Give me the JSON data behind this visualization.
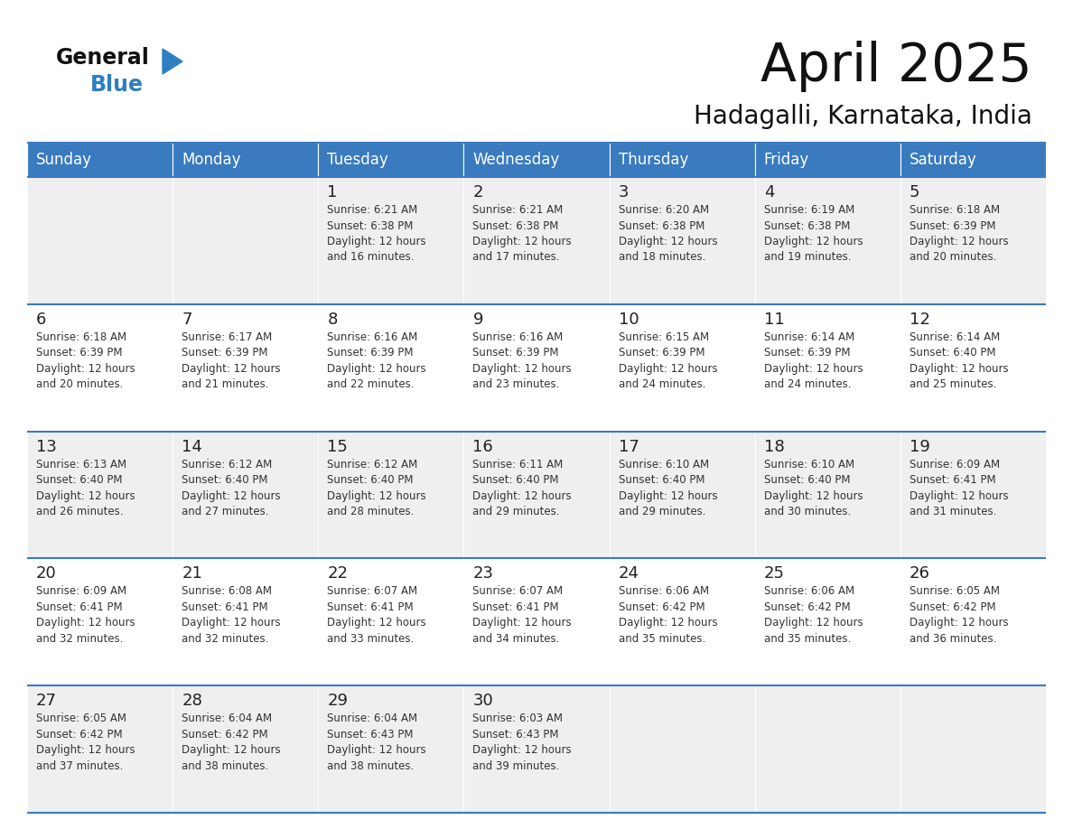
{
  "title": "April 2025",
  "subtitle": "Hadagalli, Karnataka, India",
  "header_bg_color": "#3a7abf",
  "header_text_color": "#ffffff",
  "day_names": [
    "Sunday",
    "Monday",
    "Tuesday",
    "Wednesday",
    "Thursday",
    "Friday",
    "Saturday"
  ],
  "row0_bg": "#efefef",
  "row1_bg": "#ffffff",
  "row2_bg": "#efefef",
  "row3_bg": "#ffffff",
  "row4_bg": "#efefef",
  "cell_text_color": "#333333",
  "day_number_color": "#222222",
  "border_color": "#3a7abf",
  "logo_general_color": "#111111",
  "logo_blue_color": "#2e7fc1",
  "title_color": "#111111",
  "subtitle_color": "#111111",
  "calendar_data": [
    [
      {
        "day": null,
        "info": null
      },
      {
        "day": null,
        "info": null
      },
      {
        "day": "1",
        "info": "Sunrise: 6:21 AM\nSunset: 6:38 PM\nDaylight: 12 hours\nand 16 minutes."
      },
      {
        "day": "2",
        "info": "Sunrise: 6:21 AM\nSunset: 6:38 PM\nDaylight: 12 hours\nand 17 minutes."
      },
      {
        "day": "3",
        "info": "Sunrise: 6:20 AM\nSunset: 6:38 PM\nDaylight: 12 hours\nand 18 minutes."
      },
      {
        "day": "4",
        "info": "Sunrise: 6:19 AM\nSunset: 6:38 PM\nDaylight: 12 hours\nand 19 minutes."
      },
      {
        "day": "5",
        "info": "Sunrise: 6:18 AM\nSunset: 6:39 PM\nDaylight: 12 hours\nand 20 minutes."
      }
    ],
    [
      {
        "day": "6",
        "info": "Sunrise: 6:18 AM\nSunset: 6:39 PM\nDaylight: 12 hours\nand 20 minutes."
      },
      {
        "day": "7",
        "info": "Sunrise: 6:17 AM\nSunset: 6:39 PM\nDaylight: 12 hours\nand 21 minutes."
      },
      {
        "day": "8",
        "info": "Sunrise: 6:16 AM\nSunset: 6:39 PM\nDaylight: 12 hours\nand 22 minutes."
      },
      {
        "day": "9",
        "info": "Sunrise: 6:16 AM\nSunset: 6:39 PM\nDaylight: 12 hours\nand 23 minutes."
      },
      {
        "day": "10",
        "info": "Sunrise: 6:15 AM\nSunset: 6:39 PM\nDaylight: 12 hours\nand 24 minutes."
      },
      {
        "day": "11",
        "info": "Sunrise: 6:14 AM\nSunset: 6:39 PM\nDaylight: 12 hours\nand 24 minutes."
      },
      {
        "day": "12",
        "info": "Sunrise: 6:14 AM\nSunset: 6:40 PM\nDaylight: 12 hours\nand 25 minutes."
      }
    ],
    [
      {
        "day": "13",
        "info": "Sunrise: 6:13 AM\nSunset: 6:40 PM\nDaylight: 12 hours\nand 26 minutes."
      },
      {
        "day": "14",
        "info": "Sunrise: 6:12 AM\nSunset: 6:40 PM\nDaylight: 12 hours\nand 27 minutes."
      },
      {
        "day": "15",
        "info": "Sunrise: 6:12 AM\nSunset: 6:40 PM\nDaylight: 12 hours\nand 28 minutes."
      },
      {
        "day": "16",
        "info": "Sunrise: 6:11 AM\nSunset: 6:40 PM\nDaylight: 12 hours\nand 29 minutes."
      },
      {
        "day": "17",
        "info": "Sunrise: 6:10 AM\nSunset: 6:40 PM\nDaylight: 12 hours\nand 29 minutes."
      },
      {
        "day": "18",
        "info": "Sunrise: 6:10 AM\nSunset: 6:40 PM\nDaylight: 12 hours\nand 30 minutes."
      },
      {
        "day": "19",
        "info": "Sunrise: 6:09 AM\nSunset: 6:41 PM\nDaylight: 12 hours\nand 31 minutes."
      }
    ],
    [
      {
        "day": "20",
        "info": "Sunrise: 6:09 AM\nSunset: 6:41 PM\nDaylight: 12 hours\nand 32 minutes."
      },
      {
        "day": "21",
        "info": "Sunrise: 6:08 AM\nSunset: 6:41 PM\nDaylight: 12 hours\nand 32 minutes."
      },
      {
        "day": "22",
        "info": "Sunrise: 6:07 AM\nSunset: 6:41 PM\nDaylight: 12 hours\nand 33 minutes."
      },
      {
        "day": "23",
        "info": "Sunrise: 6:07 AM\nSunset: 6:41 PM\nDaylight: 12 hours\nand 34 minutes."
      },
      {
        "day": "24",
        "info": "Sunrise: 6:06 AM\nSunset: 6:42 PM\nDaylight: 12 hours\nand 35 minutes."
      },
      {
        "day": "25",
        "info": "Sunrise: 6:06 AM\nSunset: 6:42 PM\nDaylight: 12 hours\nand 35 minutes."
      },
      {
        "day": "26",
        "info": "Sunrise: 6:05 AM\nSunset: 6:42 PM\nDaylight: 12 hours\nand 36 minutes."
      }
    ],
    [
      {
        "day": "27",
        "info": "Sunrise: 6:05 AM\nSunset: 6:42 PM\nDaylight: 12 hours\nand 37 minutes."
      },
      {
        "day": "28",
        "info": "Sunrise: 6:04 AM\nSunset: 6:42 PM\nDaylight: 12 hours\nand 38 minutes."
      },
      {
        "day": "29",
        "info": "Sunrise: 6:04 AM\nSunset: 6:43 PM\nDaylight: 12 hours\nand 38 minutes."
      },
      {
        "day": "30",
        "info": "Sunrise: 6:03 AM\nSunset: 6:43 PM\nDaylight: 12 hours\nand 39 minutes."
      },
      {
        "day": null,
        "info": null
      },
      {
        "day": null,
        "info": null
      },
      {
        "day": null,
        "info": null
      }
    ]
  ],
  "row_bgs": [
    "#efefef",
    "#ffffff",
    "#efefef",
    "#ffffff",
    "#efefef"
  ]
}
